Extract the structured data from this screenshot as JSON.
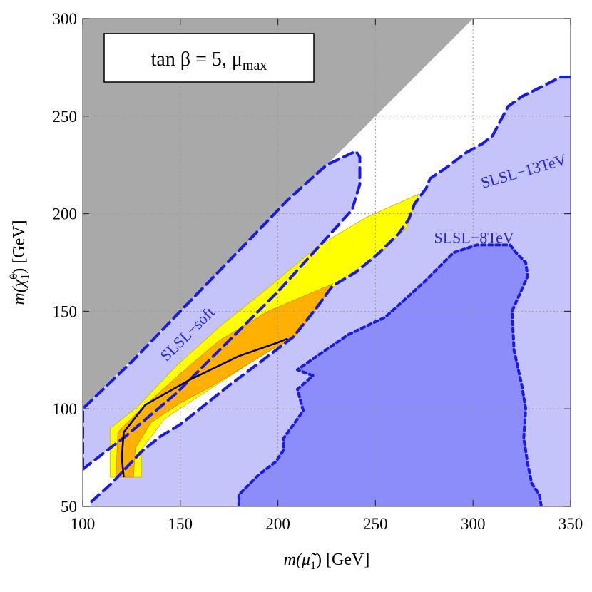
{
  "chart_data": {
    "type": "area",
    "title": "",
    "annotation_box": {
      "label": "tan β = 5, μ",
      "subscript": "max"
    },
    "xlabel": {
      "prefix": "m(",
      "symbol": "μ̃",
      "sub": "1",
      "suffix": ") [GeV]"
    },
    "ylabel": {
      "prefix": "m(",
      "symbol": "χ̃",
      "sup": "0",
      "sub": "1",
      "suffix": ") [GeV]"
    },
    "xlim": [
      100,
      350
    ],
    "ylim": [
      50,
      300
    ],
    "xticks": [
      100,
      150,
      200,
      250,
      300,
      350
    ],
    "yticks": [
      50,
      100,
      150,
      200,
      250,
      300
    ],
    "grid": true,
    "colors": {
      "excluded_gray": "#a9a9a9",
      "slsl_13tev_fill": "#c4c4fa",
      "slsl_8tev_fill": "#8c8cfa",
      "contour_line": "#1a1ae6",
      "yellow_band": "#ffff00",
      "orange_band": "#ffb000",
      "central_line": "#000000"
    },
    "regions": [
      {
        "name": "kinematically-forbidden",
        "fill": "excluded_gray",
        "points": [
          [
            100,
            100
          ],
          [
            100,
            300
          ],
          [
            300,
            300
          ]
        ]
      },
      {
        "name": "SLSL-13TeV",
        "fill": "slsl_13tev_fill",
        "points": [
          [
            100,
            50
          ],
          [
            350,
            50
          ],
          [
            350,
            270
          ],
          [
            345,
            270
          ],
          [
            325,
            260
          ],
          [
            318,
            255
          ],
          [
            310,
            240
          ],
          [
            305,
            236
          ],
          [
            296,
            231
          ],
          [
            287,
            224
          ],
          [
            278,
            218
          ],
          [
            276,
            213
          ],
          [
            270,
            205
          ],
          [
            267,
            197
          ],
          [
            262,
            190
          ],
          [
            252,
            180
          ],
          [
            240,
            170
          ],
          [
            228,
            163
          ],
          [
            220,
            152
          ],
          [
            208,
            137
          ],
          [
            195,
            127
          ],
          [
            175,
            112
          ],
          [
            160,
            100
          ],
          [
            150,
            92
          ],
          [
            140,
            86
          ],
          [
            130,
            78
          ],
          [
            115,
            62
          ],
          [
            104,
            52
          ],
          [
            104,
            50
          ]
        ]
      },
      {
        "name": "SLSL-soft",
        "fill": "slsl_13tev_fill",
        "points": [
          [
            100,
            69
          ],
          [
            122,
            86
          ],
          [
            148,
            108
          ],
          [
            175,
            135
          ],
          [
            200,
            160
          ],
          [
            220,
            182
          ],
          [
            238,
            202
          ],
          [
            242,
            215
          ],
          [
            242,
            229
          ],
          [
            240,
            232
          ],
          [
            225,
            225
          ],
          [
            205,
            207
          ],
          [
            180,
            181
          ],
          [
            150,
            150
          ],
          [
            125,
            124
          ],
          [
            100,
            100
          ]
        ]
      },
      {
        "name": "SLSL-8TeV",
        "fill": "slsl_8tev_fill",
        "points": [
          [
            100,
            50
          ],
          [
            180,
            50
          ],
          [
            180,
            56
          ],
          [
            190,
            66
          ],
          [
            199,
            73
          ],
          [
            203,
            79
          ],
          [
            203,
            85
          ],
          [
            213,
            99
          ],
          [
            210,
            110
          ],
          [
            218,
            117
          ],
          [
            210,
            120
          ],
          [
            220,
            127
          ],
          [
            236,
            138
          ],
          [
            255,
            147
          ],
          [
            275,
            165
          ],
          [
            290,
            180
          ],
          [
            302,
            184
          ],
          [
            319,
            184
          ],
          [
            322,
            180
          ],
          [
            327,
            175
          ],
          [
            328,
            168
          ],
          [
            320,
            150
          ],
          [
            321,
            130
          ],
          [
            325,
            112
          ],
          [
            327,
            100
          ],
          [
            326,
            85
          ],
          [
            328,
            72
          ],
          [
            330,
            62
          ],
          [
            334,
            56
          ],
          [
            335,
            50
          ]
        ]
      },
      {
        "name": "yellow-band",
        "fill": "yellow_band",
        "points": [
          [
            114,
            65
          ],
          [
            114,
            90
          ],
          [
            128,
            101
          ],
          [
            148,
            122
          ],
          [
            170,
            142
          ],
          [
            195,
            162
          ],
          [
            220,
            183
          ],
          [
            245,
            198
          ],
          [
            272,
            210
          ],
          [
            266,
            193
          ],
          [
            255,
            182
          ],
          [
            230,
            164
          ],
          [
            212,
            144
          ],
          [
            200,
            133
          ],
          [
            185,
            123
          ],
          [
            165,
            110
          ],
          [
            142,
            95
          ],
          [
            130,
            79
          ],
          [
            130,
            65
          ]
        ]
      },
      {
        "name": "orange-band",
        "fill": "orange_band",
        "points": [
          [
            117,
            65
          ],
          [
            118,
            88
          ],
          [
            130,
            100
          ],
          [
            150,
            118
          ],
          [
            170,
            135
          ],
          [
            195,
            150
          ],
          [
            228,
            164
          ],
          [
            220,
            152
          ],
          [
            215,
            145
          ],
          [
            208,
            136
          ],
          [
            198,
            131
          ],
          [
            180,
            120
          ],
          [
            165,
            111
          ],
          [
            150,
            103
          ],
          [
            135,
            93
          ],
          [
            127,
            80
          ],
          [
            126,
            65
          ]
        ]
      }
    ],
    "central_curve": {
      "name": "central-curve",
      "points": [
        [
          121,
          65
        ],
        [
          120,
          75
        ],
        [
          121,
          88
        ],
        [
          132,
          102
        ],
        [
          155,
          115
        ],
        [
          180,
          127
        ],
        [
          200,
          134
        ],
        [
          205,
          136
        ]
      ]
    },
    "contours": [
      {
        "name": "slsl-13tev-contour",
        "style": "dashed",
        "points": [
          [
            350,
            270
          ],
          [
            345,
            270
          ],
          [
            325,
            260
          ],
          [
            318,
            255
          ],
          [
            310,
            240
          ],
          [
            305,
            236
          ],
          [
            296,
            231
          ],
          [
            287,
            224
          ],
          [
            278,
            218
          ],
          [
            276,
            213
          ],
          [
            270,
            205
          ],
          [
            267,
            197
          ],
          [
            262,
            190
          ],
          [
            252,
            180
          ],
          [
            240,
            170
          ],
          [
            228,
            163
          ],
          [
            220,
            152
          ],
          [
            208,
            137
          ],
          [
            195,
            127
          ],
          [
            175,
            112
          ],
          [
            160,
            100
          ],
          [
            150,
            92
          ],
          [
            140,
            86
          ],
          [
            130,
            78
          ],
          [
            115,
            62
          ],
          [
            104,
            52
          ],
          [
            104,
            50
          ]
        ]
      },
      {
        "name": "slsl-soft-contour",
        "style": "dashed",
        "closed": true,
        "points": [
          [
            100,
            69
          ],
          [
            122,
            86
          ],
          [
            148,
            108
          ],
          [
            175,
            135
          ],
          [
            200,
            160
          ],
          [
            220,
            182
          ],
          [
            238,
            202
          ],
          [
            242,
            215
          ],
          [
            242,
            229
          ],
          [
            240,
            232
          ],
          [
            225,
            225
          ],
          [
            205,
            207
          ],
          [
            180,
            181
          ],
          [
            150,
            150
          ],
          [
            125,
            124
          ],
          [
            100,
            100
          ]
        ]
      },
      {
        "name": "slsl-8tev-contour",
        "style": "dotted",
        "points": [
          [
            180,
            50
          ],
          [
            180,
            56
          ],
          [
            190,
            66
          ],
          [
            199,
            73
          ],
          [
            203,
            79
          ],
          [
            203,
            85
          ],
          [
            213,
            99
          ],
          [
            210,
            110
          ],
          [
            218,
            117
          ],
          [
            210,
            120
          ],
          [
            220,
            127
          ],
          [
            236,
            138
          ],
          [
            255,
            147
          ],
          [
            275,
            165
          ],
          [
            290,
            180
          ],
          [
            302,
            184
          ],
          [
            319,
            184
          ],
          [
            322,
            180
          ],
          [
            327,
            175
          ],
          [
            328,
            168
          ],
          [
            320,
            150
          ],
          [
            321,
            130
          ],
          [
            325,
            112
          ],
          [
            327,
            100
          ],
          [
            326,
            85
          ],
          [
            328,
            72
          ],
          [
            330,
            62
          ],
          [
            334,
            56
          ],
          [
            335,
            50
          ]
        ]
      }
    ],
    "labels": [
      {
        "name": "label-slsl-13tev",
        "text": "SLSL−13TeV",
        "x": 305,
        "y": 213,
        "rotate": -16
      },
      {
        "name": "label-slsl-8tev",
        "text": "SLSL−8TeV",
        "x": 280,
        "y": 185,
        "rotate": 0
      },
      {
        "name": "label-slsl-soft",
        "text": "SLSL−soft",
        "x": 143,
        "y": 124,
        "rotate": -45
      }
    ]
  }
}
